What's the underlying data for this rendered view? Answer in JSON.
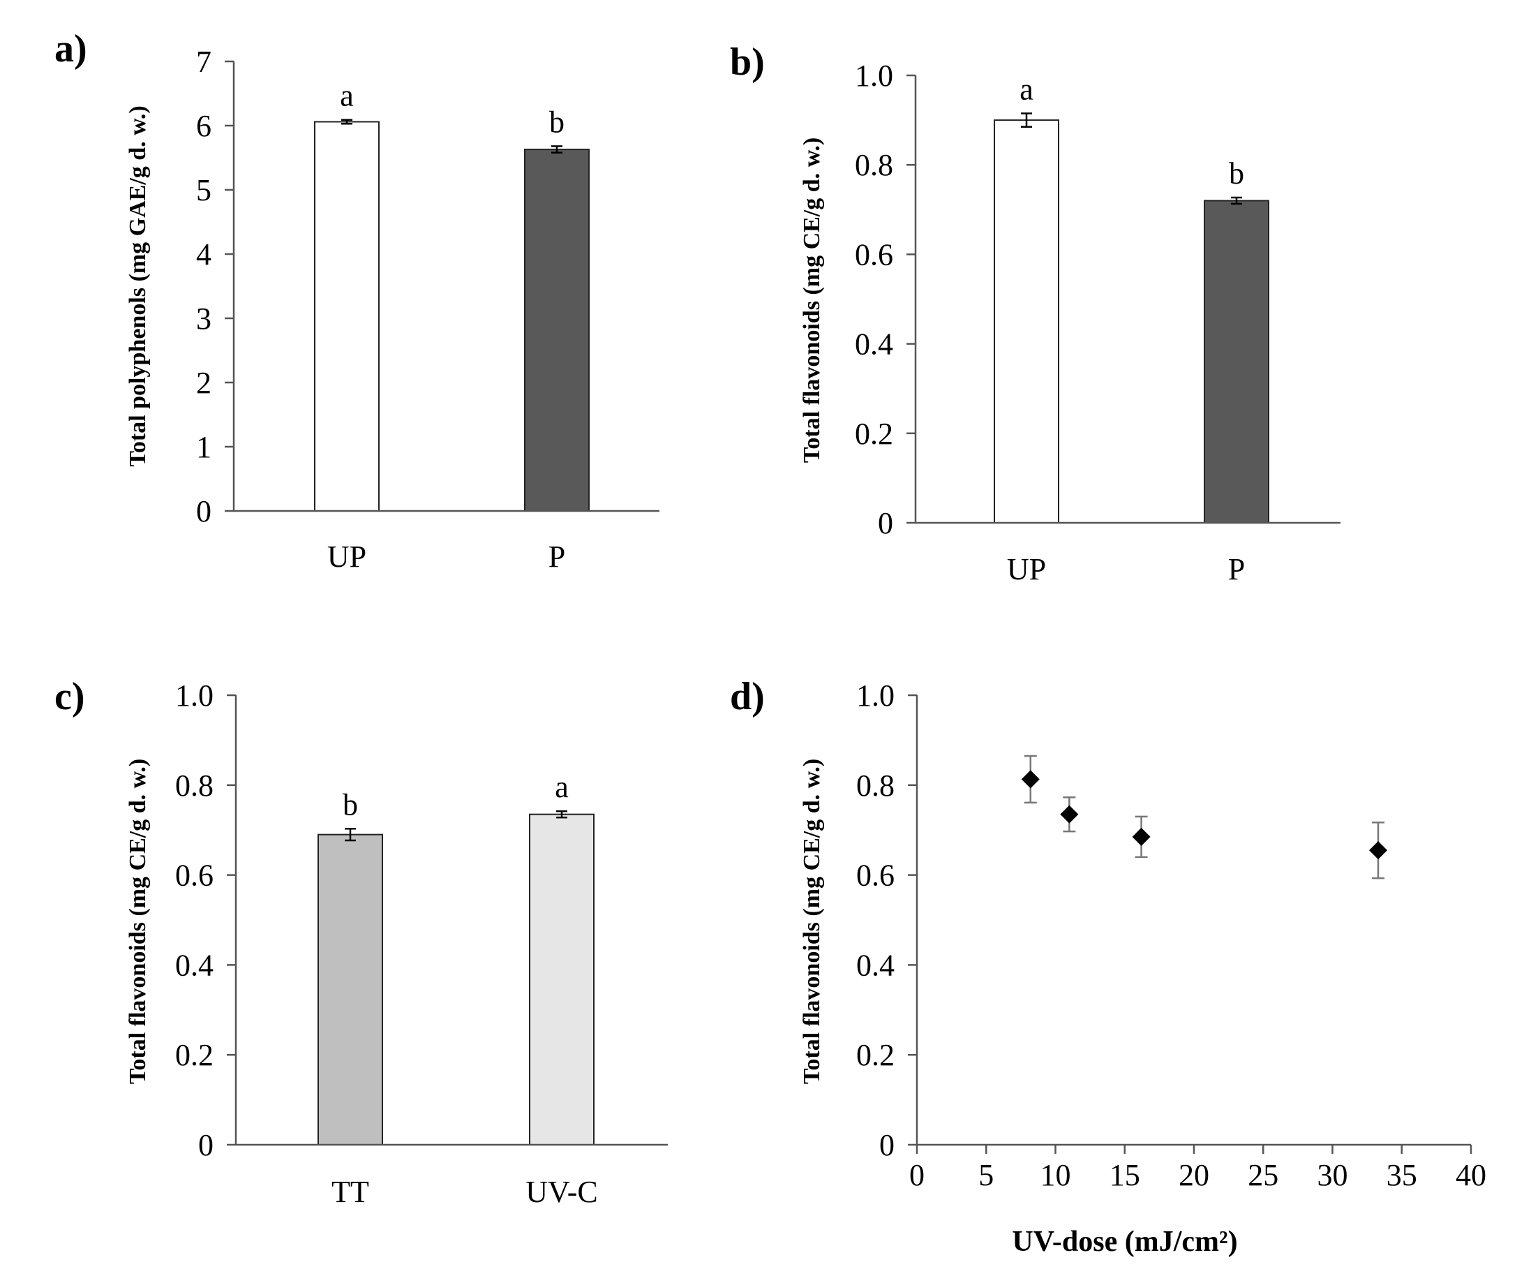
{
  "chart_data": [
    {
      "panel": "a)",
      "type": "bar",
      "ylabel": "Total polyphenols (mg GAE/g d. w.)",
      "xlabel": "",
      "ylim": [
        0,
        7
      ],
      "yticks": [
        0,
        1,
        2,
        3,
        4,
        5,
        6,
        7
      ],
      "ytick_labels": [
        "0",
        "1",
        "2",
        "3",
        "4",
        "5",
        "6",
        "7"
      ],
      "categories": [
        "UP",
        "P"
      ],
      "values": [
        6.06,
        5.63
      ],
      "errors": [
        0.03,
        0.05
      ],
      "significance": [
        "a",
        "b"
      ],
      "colors": [
        "#ffffff",
        "#595959"
      ]
    },
    {
      "panel": "b)",
      "type": "bar",
      "ylabel": "Total flavonoids (mg CE/g d. w.)",
      "xlabel": "",
      "ylim": [
        0,
        1.0
      ],
      "yticks": [
        0,
        0.2,
        0.4,
        0.6,
        0.8,
        1.0
      ],
      "ytick_labels": [
        "0",
        "0.2",
        "0.4",
        "0.6",
        "0.8",
        "1.0"
      ],
      "categories": [
        "UP",
        "P"
      ],
      "values": [
        0.9,
        0.72
      ],
      "errors": [
        0.015,
        0.007
      ],
      "significance": [
        "a",
        "b"
      ],
      "colors": [
        "#ffffff",
        "#595959"
      ]
    },
    {
      "panel": "c)",
      "type": "bar",
      "ylabel": "Total flavonoids (mg CE/g d. w.)",
      "xlabel": "",
      "ylim": [
        0,
        1.0
      ],
      "yticks": [
        0,
        0.2,
        0.4,
        0.6,
        0.8,
        1.0
      ],
      "ytick_labels": [
        "0",
        "0.2",
        "0.4",
        "0.6",
        "0.8",
        "1.0"
      ],
      "categories": [
        "TT",
        "UV-C"
      ],
      "values": [
        0.69,
        0.735
      ],
      "errors": [
        0.013,
        0.007
      ],
      "significance": [
        "b",
        "a"
      ],
      "colors": [
        "#bfbfbf",
        "#e6e6e6"
      ]
    },
    {
      "panel": "d)",
      "type": "scatter",
      "ylabel": "Total flavonoids (mg CE/g d. w.)",
      "xlabel": "UV-dose (mJ/cm²)",
      "ylim": [
        0,
        1.0
      ],
      "xlim": [
        0,
        40
      ],
      "yticks": [
        0,
        0.2,
        0.4,
        0.6,
        0.8,
        1.0
      ],
      "ytick_labels": [
        "0",
        "0.2",
        "0.4",
        "0.6",
        "0.8",
        "1.0"
      ],
      "xticks": [
        0,
        5,
        10,
        15,
        20,
        25,
        30,
        35,
        40
      ],
      "xtick_labels": [
        "0",
        "5",
        "10",
        "15",
        "20",
        "25",
        "30",
        "35",
        "40"
      ],
      "x": [
        8.2,
        11.0,
        16.2,
        33.3
      ],
      "y": [
        0.813,
        0.735,
        0.685,
        0.655
      ],
      "errors": [
        0.052,
        0.038,
        0.045,
        0.062
      ],
      "marker": "diamond",
      "color": "#000000"
    }
  ]
}
